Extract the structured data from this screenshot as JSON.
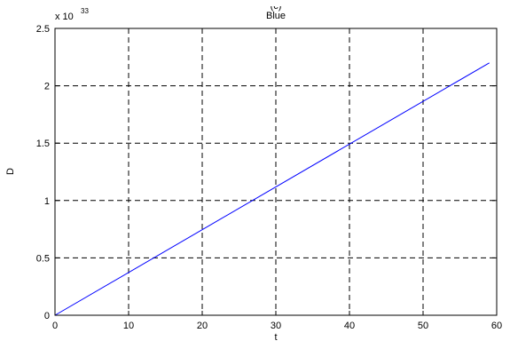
{
  "page_title_fragment": "(c)",
  "chart_data": {
    "type": "line",
    "title": "Blue",
    "xlabel": "t",
    "ylabel": "D",
    "y_multiplier": "x 10",
    "y_exponent": "33",
    "xlim": [
      0,
      60
    ],
    "ylim": [
      0,
      2.5
    ],
    "xticks": [
      "0",
      "10",
      "20",
      "30",
      "40",
      "50",
      "60"
    ],
    "yticks": [
      "0",
      "0.5",
      "1",
      "1.5",
      "2",
      "2.5"
    ],
    "grid": true,
    "grid_style": "dashed",
    "legend": "none",
    "series": [
      {
        "color": "#0000ff",
        "x": [
          0,
          59
        ],
        "y": [
          0,
          2.2
        ]
      }
    ]
  }
}
